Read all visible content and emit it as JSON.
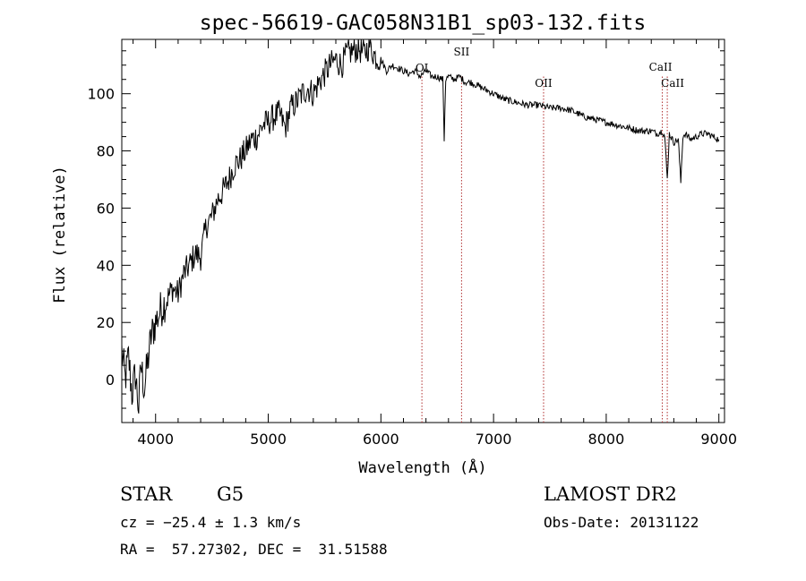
{
  "chart_data": {
    "type": "line",
    "title": "spec-56619-GAC058N31B1_sp03-132.fits",
    "xlabel": "Wavelength (Å)",
    "ylabel": "Flux (relative)",
    "xlim": [
      3700,
      9050
    ],
    "ylim": [
      -15,
      119
    ],
    "xticks": [
      4000,
      5000,
      6000,
      7000,
      8000,
      9000
    ],
    "yticks": [
      0,
      20,
      40,
      60,
      80,
      100
    ],
    "series": [
      {
        "x": [
          3700,
          3730,
          3760,
          3790,
          3820,
          3850,
          3870,
          3900,
          3930,
          3960,
          4000,
          4050,
          4100,
          4150,
          4200,
          4250,
          4300,
          4350,
          4400,
          4450,
          4500,
          4550,
          4600,
          4650,
          4700,
          4750,
          4800,
          4850,
          4900,
          4950,
          5000,
          5050,
          5100,
          5150,
          5200,
          5250,
          5300,
          5350,
          5400,
          5450,
          5500,
          5550,
          5600,
          5650,
          5700,
          5750,
          5800,
          5850,
          5900,
          5950,
          6000,
          6050,
          6100,
          6150,
          6200,
          6250,
          6300,
          6350,
          6400,
          6450,
          6500,
          6550,
          6562,
          6575,
          6600,
          6650,
          6700,
          6750,
          6800,
          6850,
          6900,
          6950,
          7000,
          7100,
          7200,
          7300,
          7400,
          7500,
          7600,
          7700,
          7800,
          7900,
          8000,
          8100,
          8200,
          8300,
          8400,
          8450,
          8498,
          8520,
          8542,
          8560,
          8600,
          8640,
          8662,
          8680,
          8700,
          8750,
          8800,
          8850,
          8900,
          8950,
          9000
        ],
        "y": [
          10,
          0,
          8,
          -5,
          2,
          -10,
          5,
          -3,
          6,
          15,
          20,
          25,
          28,
          32,
          30,
          37,
          40,
          44,
          43,
          54,
          57,
          63,
          66,
          70,
          75,
          77,
          80,
          84,
          85,
          89,
          90,
          92,
          93,
          88,
          95,
          97,
          100,
          102,
          100,
          104,
          107,
          110,
          112,
          110,
          114,
          115,
          116,
          114,
          117,
          113,
          112,
          108,
          110,
          109,
          108,
          107,
          108,
          106,
          108,
          106,
          106,
          105,
          84,
          105,
          106,
          105,
          106,
          104,
          104,
          103,
          102,
          101,
          100,
          98,
          97,
          96,
          96,
          95,
          95,
          94,
          92,
          91,
          90,
          89,
          88,
          87,
          87,
          86,
          87,
          85,
          70,
          86,
          83,
          84,
          69,
          85,
          86,
          84,
          85,
          86,
          86,
          85,
          84
        ]
      }
    ],
    "lines": [
      {
        "label": "OI",
        "x": 6364
      },
      {
        "label": "SII",
        "x": 6716
      },
      {
        "label": "OII",
        "x": 7444
      },
      {
        "label": "CaII",
        "x": 8498
      },
      {
        "label": "CaII",
        "x": 8542
      }
    ]
  },
  "info": {
    "class": "STAR",
    "subclass": "G5",
    "survey": "LAMOST DR2",
    "cz": "cz = −25.4 ± 1.3 km/s",
    "obs_date": "Obs-Date: 20131122",
    "coords": "RA =  57.27302, DEC =  31.51588"
  }
}
